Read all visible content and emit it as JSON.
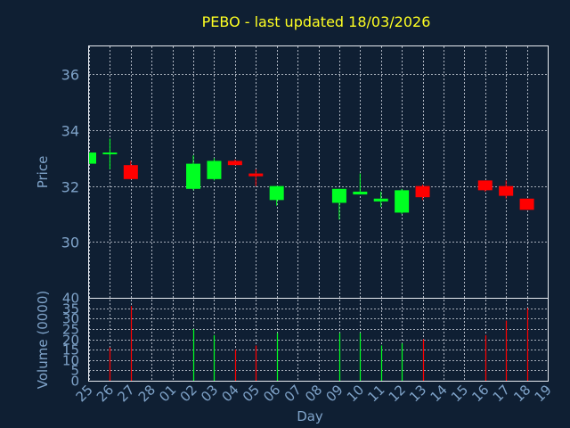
{
  "chart_data": [
    {
      "type": "candlestick",
      "title": "PEBO - last updated 18/03/2026",
      "ylabel": "Price",
      "ylim": [
        28,
        37
      ],
      "yticks": [
        30,
        32,
        34,
        36
      ],
      "grid": true,
      "colors": {
        "up": "#00ff22",
        "down": "#ff0000",
        "background": "#0f1f33",
        "title": "#ffff22",
        "text": "#7fa3c9"
      },
      "candles": [
        {
          "day": "25",
          "open": 32.8,
          "high": 33.2,
          "low": 32.8,
          "close": 33.2
        },
        {
          "day": "26",
          "open": 33.2,
          "high": 33.7,
          "low": 32.6,
          "close": 33.2
        },
        {
          "day": "27",
          "open": 32.75,
          "high": 32.9,
          "low": 32.25,
          "close": 32.25
        },
        {
          "day": "02",
          "open": 31.9,
          "high": 33.1,
          "low": 31.85,
          "close": 32.8
        },
        {
          "day": "03",
          "open": 32.25,
          "high": 33.0,
          "low": 32.2,
          "close": 32.9
        },
        {
          "day": "04",
          "open": 32.9,
          "high": 32.95,
          "low": 32.75,
          "close": 32.75
        },
        {
          "day": "05",
          "open": 32.45,
          "high": 32.6,
          "low": 32.0,
          "close": 32.35
        },
        {
          "day": "06",
          "open": 31.5,
          "high": 32.0,
          "low": 31.3,
          "close": 32.0
        },
        {
          "day": "09",
          "open": 31.4,
          "high": 31.9,
          "low": 30.8,
          "close": 31.9
        },
        {
          "day": "10",
          "open": 31.7,
          "high": 32.45,
          "low": 31.7,
          "close": 31.8
        },
        {
          "day": "11",
          "open": 31.45,
          "high": 31.8,
          "low": 31.25,
          "close": 31.55
        },
        {
          "day": "12",
          "open": 31.05,
          "high": 31.9,
          "low": 31.0,
          "close": 31.85
        },
        {
          "day": "13",
          "open": 32.0,
          "high": 32.05,
          "low": 31.5,
          "close": 31.6
        },
        {
          "day": "16",
          "open": 32.2,
          "high": 32.2,
          "low": 31.8,
          "close": 31.85
        },
        {
          "day": "17",
          "open": 32.0,
          "high": 32.2,
          "low": 31.55,
          "close": 31.65
        },
        {
          "day": "18",
          "open": 31.55,
          "high": 31.55,
          "low": 31.15,
          "close": 31.15
        }
      ]
    },
    {
      "type": "bar",
      "ylabel": "Volume (0000)",
      "ylim": [
        0,
        40
      ],
      "yticks": [
        0,
        5,
        10,
        15,
        20,
        25,
        30,
        35,
        40
      ],
      "grid": true,
      "series": [
        {
          "values": [
            {
              "day": "26",
              "volume": 16,
              "direction": "down"
            },
            {
              "day": "27",
              "volume": 36,
              "direction": "down"
            },
            {
              "day": "02",
              "volume": 25,
              "direction": "up"
            },
            {
              "day": "03",
              "volume": 22,
              "direction": "up"
            },
            {
              "day": "04",
              "volume": 15,
              "direction": "down"
            },
            {
              "day": "05",
              "volume": 17,
              "direction": "down"
            },
            {
              "day": "06",
              "volume": 23,
              "direction": "up"
            },
            {
              "day": "09",
              "volume": 23,
              "direction": "up"
            },
            {
              "day": "10",
              "volume": 23,
              "direction": "up"
            },
            {
              "day": "11",
              "volume": 17,
              "direction": "up"
            },
            {
              "day": "12",
              "volume": 18,
              "direction": "up"
            },
            {
              "day": "13",
              "volume": 20,
              "direction": "down"
            },
            {
              "day": "16",
              "volume": 22,
              "direction": "down"
            },
            {
              "day": "17",
              "volume": 29,
              "direction": "down"
            },
            {
              "day": "18",
              "volume": 35,
              "direction": "down"
            }
          ]
        }
      ]
    }
  ],
  "x_axis": {
    "label": "Day",
    "days": [
      "25",
      "26",
      "27",
      "28",
      "01",
      "02",
      "03",
      "04",
      "05",
      "06",
      "07",
      "08",
      "09",
      "10",
      "11",
      "12",
      "13",
      "14",
      "15",
      "16",
      "17",
      "18",
      "19"
    ]
  }
}
